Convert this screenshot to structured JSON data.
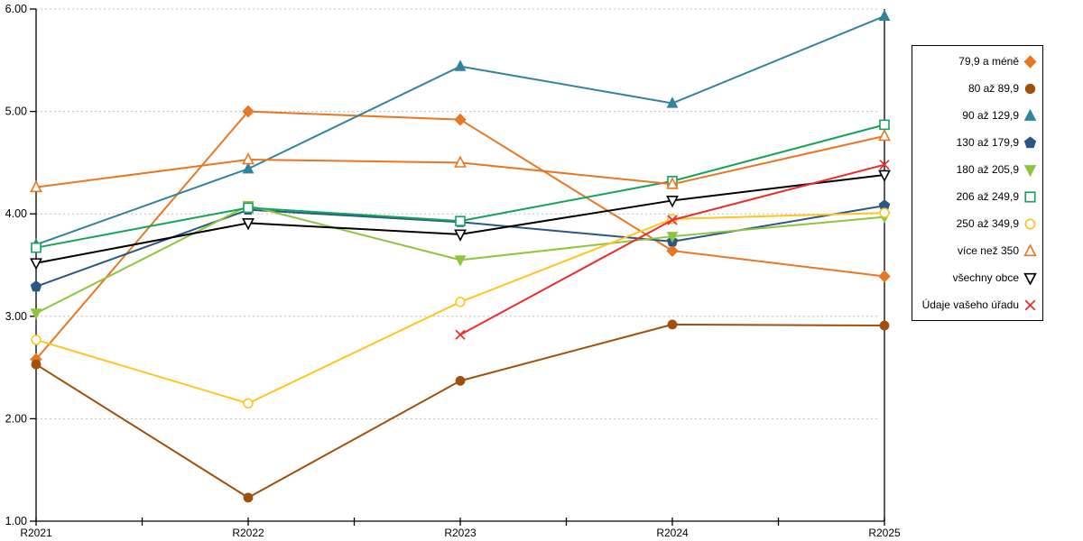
{
  "chart_data": {
    "type": "line",
    "title": "",
    "x_categories": [
      "R2021",
      "R2022",
      "R2023",
      "R2024",
      "R2025"
    ],
    "ylim": [
      1,
      6
    ],
    "y_tick_values": [
      1,
      2,
      3,
      4,
      5,
      6
    ],
    "y_tick_labels": [
      "1.00",
      "2.00",
      "3.00",
      "4.00",
      "5.00",
      "6.00"
    ],
    "grid": "horizontal-dotted",
    "legend_position": "right",
    "series": [
      {
        "name": "79,9 a méně",
        "marker": "diamond",
        "fill": "filled",
        "color": "#E87722",
        "values": [
          2.58,
          5.0,
          4.92,
          3.64,
          3.39
        ]
      },
      {
        "name": "80 až 89,9",
        "marker": "circle",
        "fill": "filled",
        "color": "#A0500A",
        "values": [
          2.53,
          1.23,
          2.37,
          2.92,
          2.91
        ]
      },
      {
        "name": "90 až 129,9",
        "marker": "triangle-up",
        "fill": "filled",
        "color": "#31849B",
        "values": [
          3.7,
          4.44,
          5.44,
          5.08,
          5.93
        ]
      },
      {
        "name": "130 až 179,9",
        "marker": "pentagon",
        "fill": "filled",
        "color": "#2A5783",
        "values": [
          3.29,
          4.04,
          3.92,
          3.73,
          4.08
        ]
      },
      {
        "name": "180 až 205,9",
        "marker": "triangle-down",
        "fill": "filled",
        "color": "#8CC63F",
        "values": [
          3.03,
          4.08,
          3.55,
          3.78,
          3.97
        ]
      },
      {
        "name": "206 až 249,9",
        "marker": "square",
        "fill": "open",
        "color": "#12A45A",
        "values": [
          3.67,
          4.06,
          3.93,
          4.32,
          4.87
        ]
      },
      {
        "name": "250 až 349,9",
        "marker": "circle",
        "fill": "open",
        "color": "#FFC41E",
        "values": [
          2.77,
          2.15,
          3.14,
          3.95,
          4.01
        ]
      },
      {
        "name": "více než 350",
        "marker": "triangle-up",
        "fill": "open",
        "color": "#E87722",
        "values": [
          4.26,
          4.53,
          4.5,
          4.29,
          4.76
        ]
      },
      {
        "name": "všechny obce",
        "marker": "triangle-down",
        "fill": "open",
        "color": "#000000",
        "values": [
          3.52,
          3.91,
          3.8,
          4.13,
          4.38
        ]
      },
      {
        "name": "Údaje vašeho úřadu",
        "marker": "x",
        "fill": "open",
        "color": "#EE2B2B",
        "values": [
          null,
          null,
          2.82,
          3.94,
          4.48
        ]
      }
    ]
  },
  "colors": {
    "background": "#FFFFFF",
    "axis": "#000000",
    "grid": "#BFBFBF",
    "legend_border": "#000000",
    "text": "#000000"
  }
}
